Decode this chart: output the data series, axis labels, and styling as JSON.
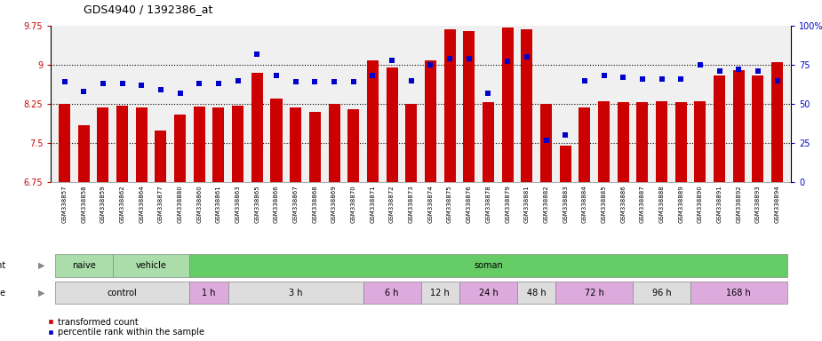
{
  "title": "GDS4940 / 1392386_at",
  "samples": [
    "GSM338857",
    "GSM338858",
    "GSM338859",
    "GSM338862",
    "GSM338864",
    "GSM338877",
    "GSM338880",
    "GSM338860",
    "GSM338861",
    "GSM338863",
    "GSM338865",
    "GSM338866",
    "GSM338867",
    "GSM338868",
    "GSM338869",
    "GSM338870",
    "GSM338871",
    "GSM338872",
    "GSM338873",
    "GSM338874",
    "GSM338875",
    "GSM338876",
    "GSM338878",
    "GSM338879",
    "GSM338881",
    "GSM338882",
    "GSM338883",
    "GSM338884",
    "GSM338885",
    "GSM338886",
    "GSM338887",
    "GSM338888",
    "GSM338889",
    "GSM338890",
    "GSM338891",
    "GSM338892",
    "GSM338893",
    "GSM338894"
  ],
  "bar_values": [
    8.25,
    7.85,
    8.18,
    8.22,
    8.19,
    7.75,
    8.05,
    8.2,
    8.18,
    8.22,
    8.85,
    8.35,
    8.18,
    8.1,
    8.25,
    8.15,
    9.08,
    8.95,
    8.25,
    9.08,
    9.68,
    9.65,
    8.28,
    9.72,
    9.68,
    8.25,
    7.45,
    8.18,
    8.3,
    8.28,
    8.28,
    8.3,
    8.28,
    8.3,
    8.8,
    8.9,
    8.8,
    9.05
  ],
  "percentile_values": [
    64,
    58,
    63,
    63,
    62,
    59,
    57,
    63,
    63,
    65,
    82,
    68,
    64,
    64,
    64,
    64,
    68,
    78,
    65,
    75,
    79,
    79,
    57,
    77,
    80,
    27,
    30,
    65,
    68,
    67,
    66,
    66,
    66,
    75,
    71,
    72,
    71,
    65
  ],
  "ymin": 6.75,
  "ymax": 9.75,
  "yticks_left": [
    6.75,
    7.5,
    8.25,
    9.0,
    9.75
  ],
  "ytick_labels_left": [
    "6.75",
    "7.5",
    "8.25",
    "9",
    "9.75"
  ],
  "yticks_right": [
    0,
    25,
    50,
    75,
    100
  ],
  "ytick_labels_right": [
    "0",
    "25",
    "50",
    "75",
    "100%"
  ],
  "bar_color": "#cc0000",
  "dot_color": "#0000cc",
  "bg_color": "#ffffff",
  "plot_bg": "#f0f0f0",
  "agent_groups": [
    {
      "label": "naive",
      "start": 0,
      "end": 3,
      "color": "#aaddaa"
    },
    {
      "label": "vehicle",
      "start": 3,
      "end": 7,
      "color": "#aaddaa"
    },
    {
      "label": "soman",
      "start": 7,
      "end": 38,
      "color": "#66cc66"
    }
  ],
  "time_groups": [
    {
      "label": "control",
      "start": 0,
      "end": 7,
      "color": "#dddddd"
    },
    {
      "label": "1 h",
      "start": 7,
      "end": 9,
      "color": "#ddaadd"
    },
    {
      "label": "3 h",
      "start": 9,
      "end": 16,
      "color": "#dddddd"
    },
    {
      "label": "6 h",
      "start": 16,
      "end": 19,
      "color": "#ddaadd"
    },
    {
      "label": "12 h",
      "start": 19,
      "end": 21,
      "color": "#dddddd"
    },
    {
      "label": "24 h",
      "start": 21,
      "end": 24,
      "color": "#ddaadd"
    },
    {
      "label": "48 h",
      "start": 24,
      "end": 26,
      "color": "#dddddd"
    },
    {
      "label": "72 h",
      "start": 26,
      "end": 30,
      "color": "#ddaadd"
    },
    {
      "label": "96 h",
      "start": 30,
      "end": 33,
      "color": "#dddddd"
    },
    {
      "label": "168 h",
      "start": 33,
      "end": 38,
      "color": "#ddaadd"
    }
  ],
  "fig_width": 9.25,
  "fig_height": 3.84,
  "dpi": 100
}
